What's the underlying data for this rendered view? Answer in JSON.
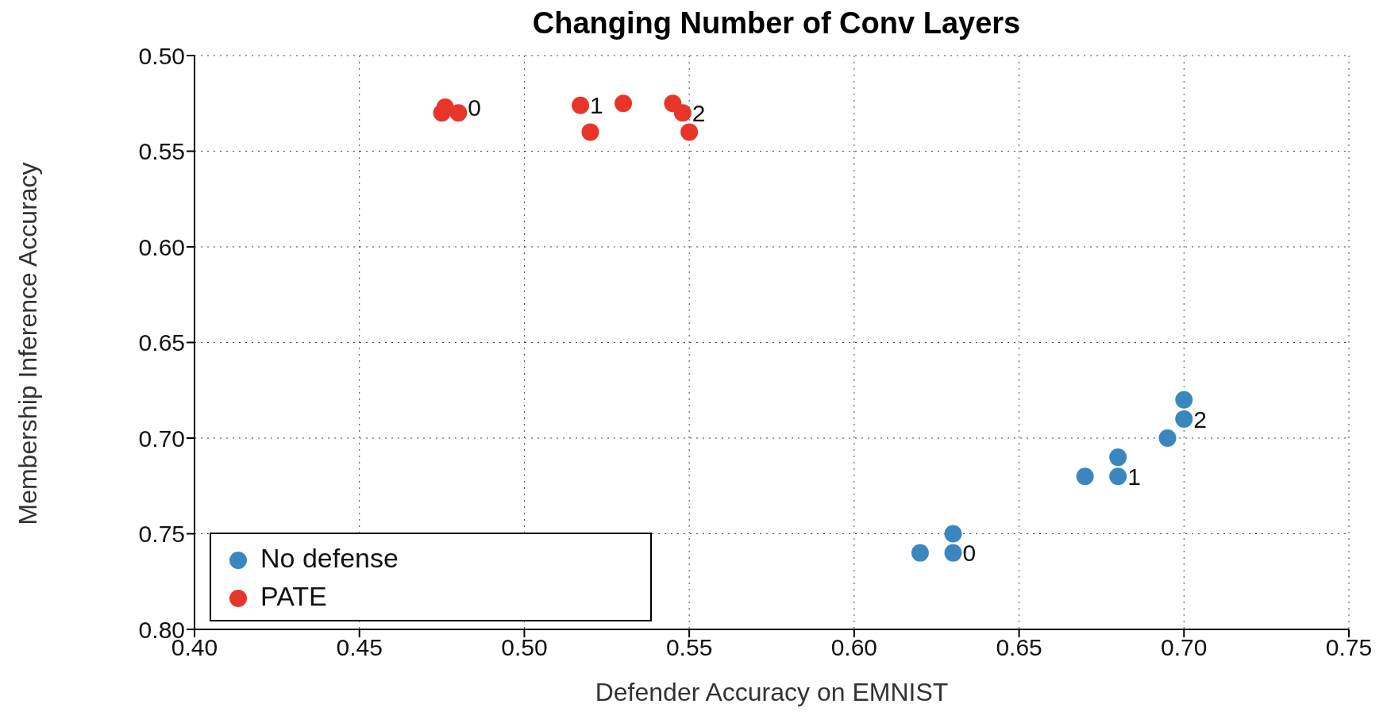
{
  "chart_data": {
    "type": "scatter",
    "title": "Changing Number of Conv Layers",
    "xlabel": "Defender Accuracy on EMNIST",
    "ylabel": "Membership Inference Accuracy",
    "xlim": [
      0.4,
      0.75
    ],
    "xticks": [
      {
        "value": 0.4,
        "label": "0.40"
      },
      {
        "value": 0.45,
        "label": "0.45"
      },
      {
        "value": 0.5,
        "label": "0.50"
      },
      {
        "value": 0.55,
        "label": "0.55"
      },
      {
        "value": 0.6,
        "label": "0.60"
      },
      {
        "value": 0.65,
        "label": "0.65"
      },
      {
        "value": 0.7,
        "label": "0.70"
      },
      {
        "value": 0.75,
        "label": "0.75"
      }
    ],
    "ylim": [
      0.8,
      0.5
    ],
    "yticks": [
      {
        "value": 0.5,
        "label": "0.50"
      },
      {
        "value": 0.55,
        "label": "0.55"
      },
      {
        "value": 0.6,
        "label": "0.60"
      },
      {
        "value": 0.65,
        "label": "0.65"
      },
      {
        "value": 0.7,
        "label": "0.70"
      },
      {
        "value": 0.75,
        "label": "0.75"
      },
      {
        "value": 0.8,
        "label": "0.80"
      }
    ],
    "grid": true,
    "legend": "bottom left",
    "marker": "circle",
    "series": [
      {
        "name": "No defense",
        "color": "#3a87c0",
        "x": [
          0.62,
          0.63,
          0.63,
          0.67,
          0.68,
          0.68,
          0.695,
          0.7,
          0.7
        ],
        "values": [
          0.76,
          0.75,
          0.76,
          0.72,
          0.71,
          0.72,
          0.7,
          0.68,
          0.69
        ]
      },
      {
        "name": "PATE",
        "color": "#e8352a",
        "x": [
          0.475,
          0.476,
          0.48,
          0.517,
          0.52,
          0.53,
          0.545,
          0.548,
          0.55
        ],
        "values": [
          0.53,
          0.527,
          0.53,
          0.526,
          0.54,
          0.525,
          0.525,
          0.53,
          0.54
        ]
      }
    ],
    "annotations": [
      {
        "text": "0",
        "x": 0.48,
        "y": 0.527
      },
      {
        "text": "1",
        "x": 0.517,
        "y": 0.526
      },
      {
        "text": "2",
        "x": 0.548,
        "y": 0.53
      },
      {
        "text": "0",
        "x": 0.63,
        "y": 0.76
      },
      {
        "text": "1",
        "x": 0.68,
        "y": 0.72
      },
      {
        "text": "2",
        "x": 0.7,
        "y": 0.69
      }
    ]
  }
}
